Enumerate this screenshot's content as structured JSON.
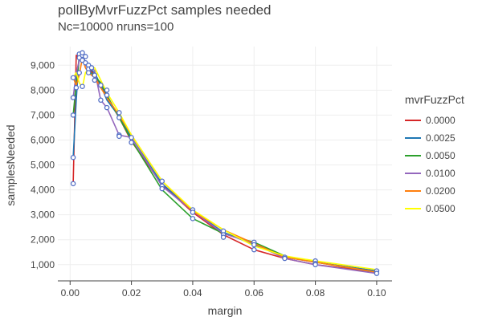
{
  "chart_data": {
    "type": "line",
    "title": "pollByMvrFuzzPct samples needed",
    "subtitle": "Nc=10000 nruns=100",
    "xlabel": "margin",
    "ylabel": "samplesNeeded",
    "xlim": [
      -0.004,
      0.105
    ],
    "ylim": [
      350,
      9750
    ],
    "x_ticks": [
      0,
      0.02,
      0.04,
      0.06,
      0.08,
      0.1
    ],
    "x_tick_labels": [
      "0.00",
      "0.02",
      "0.04",
      "0.06",
      "0.08",
      "0.10"
    ],
    "y_ticks": [
      1000,
      2000,
      3000,
      4000,
      5000,
      6000,
      7000,
      8000,
      9000
    ],
    "y_tick_labels": [
      "1,000",
      "2,000",
      "3,000",
      "4,000",
      "5,000",
      "6,000",
      "7,000",
      "8,000",
      "9,000"
    ],
    "grid": true,
    "legend_position": "right",
    "legend_title": "mvrFuzzPct",
    "x": [
      0.001,
      0.002,
      0.003,
      0.004,
      0.005,
      0.006,
      0.008,
      0.01,
      0.012,
      0.016,
      0.02,
      0.03,
      0.04,
      0.05,
      0.06,
      0.07,
      0.08,
      0.1
    ],
    "series": [
      {
        "name": "0.0000",
        "color": "#d62728",
        "values": [
          4250,
          9400,
          9300,
          9450,
          9100,
          8900,
          8600,
          8200,
          7700,
          6900,
          5950,
          4200,
          3100,
          2200,
          1600,
          1250,
          1000,
          700
        ]
      },
      {
        "name": "0.0025",
        "color": "#1f77b4",
        "values": [
          5300,
          7600,
          9450,
          9500,
          9050,
          8900,
          8700,
          8200,
          7600,
          6950,
          6100,
          4250,
          3150,
          2300,
          1800,
          1300,
          1100,
          750
        ]
      },
      {
        "name": "0.0050",
        "color": "#2ca02c",
        "values": [
          7000,
          8300,
          9300,
          9350,
          9100,
          8800,
          8550,
          8300,
          7800,
          6900,
          6000,
          4000,
          2850,
          2250,
          1900,
          1350,
          1100,
          700
        ]
      },
      {
        "name": "0.0100",
        "color": "#9467bd",
        "values": [
          7700,
          8700,
          9200,
          9400,
          9000,
          8900,
          8800,
          7600,
          7300,
          6200,
          6100,
          4150,
          3150,
          2250,
          1850,
          1250,
          1000,
          650
        ]
      },
      {
        "name": "0.0200",
        "color": "#ff7f0e",
        "values": [
          8500,
          8200,
          8600,
          9300,
          8900,
          8700,
          8500,
          8100,
          7700,
          7000,
          6200,
          4350,
          3150,
          2400,
          1850,
          1300,
          1100,
          700
        ]
      },
      {
        "name": "0.0500",
        "color": "#ffff00",
        "values": [
          8500,
          8700,
          8300,
          8100,
          8700,
          8850,
          8900,
          8400,
          7900,
          7100,
          6200,
          4350,
          3200,
          2400,
          1750,
          1350,
          1150,
          800
        ]
      }
    ],
    "markers": {
      "color": "#5470c6",
      "y": [
        4250,
        7000,
        7700,
        5300,
        8500,
        8100,
        9450,
        9300,
        8700,
        9400,
        9200,
        9500,
        9350,
        8150,
        9100,
        9000,
        8850,
        8700,
        8900,
        8600,
        8400,
        8200,
        7600,
        7800,
        7300,
        8000,
        7100,
        6900,
        6200,
        6150,
        6100,
        5900,
        4350,
        4150,
        4050,
        3200,
        3100,
        2850,
        2350,
        2200,
        2100,
        1900,
        1800,
        1600,
        1300,
        1250,
        1150,
        1050,
        1000,
        750,
        650
      ],
      "x": [
        0.001,
        0.001,
        0.001,
        0.001,
        0.001,
        0.002,
        0.003,
        0.003,
        0.003,
        0.004,
        0.004,
        0.004,
        0.005,
        0.004,
        0.005,
        0.006,
        0.006,
        0.006,
        0.007,
        0.008,
        0.008,
        0.01,
        0.01,
        0.012,
        0.012,
        0.012,
        0.016,
        0.016,
        0.016,
        0.016,
        0.02,
        0.02,
        0.03,
        0.03,
        0.03,
        0.04,
        0.04,
        0.04,
        0.05,
        0.05,
        0.05,
        0.06,
        0.06,
        0.06,
        0.07,
        0.07,
        0.08,
        0.08,
        0.08,
        0.1,
        0.1
      ]
    }
  }
}
